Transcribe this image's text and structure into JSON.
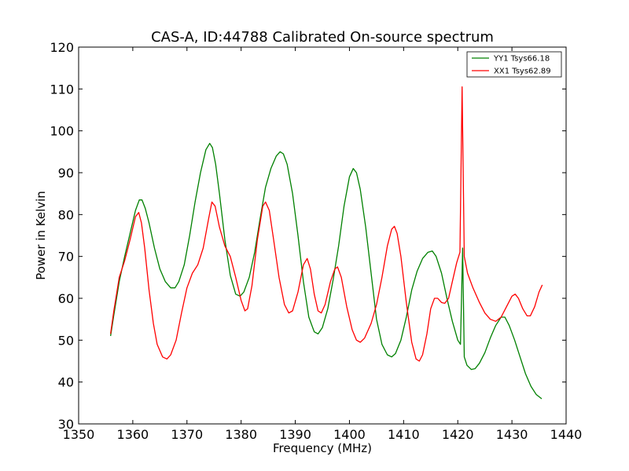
{
  "chart_data": {
    "type": "line",
    "title": "CAS-A, ID:44788 Calibrated On-source spectrum",
    "xlabel": "Frequency (MHz)",
    "ylabel": "Power in Kelvin",
    "xlim": [
      1350,
      1440
    ],
    "ylim": [
      30,
      120
    ],
    "xticks": [
      1350,
      1360,
      1370,
      1380,
      1390,
      1400,
      1410,
      1420,
      1430,
      1440
    ],
    "yticks": [
      30,
      40,
      50,
      60,
      70,
      80,
      90,
      100,
      110,
      120
    ],
    "grid": false,
    "legend_position": "top-right",
    "series": [
      {
        "name": "YY1 Tsys66.18",
        "color": "#008000",
        "points": [
          [
            1355.9,
            51.0
          ],
          [
            1356.5,
            56.0
          ],
          [
            1357.5,
            64.0
          ],
          [
            1358.5,
            70.0
          ],
          [
            1359.5,
            75.5
          ],
          [
            1360.5,
            81.0
          ],
          [
            1361.2,
            83.5
          ],
          [
            1361.7,
            83.5
          ],
          [
            1362.3,
            81.5
          ],
          [
            1363.0,
            78.0
          ],
          [
            1364.0,
            72.0
          ],
          [
            1365.0,
            67.0
          ],
          [
            1366.0,
            64.0
          ],
          [
            1367.0,
            62.5
          ],
          [
            1367.8,
            62.5
          ],
          [
            1368.5,
            64.0
          ],
          [
            1369.5,
            68.0
          ],
          [
            1370.5,
            75.0
          ],
          [
            1371.5,
            83.0
          ],
          [
            1372.5,
            90.0
          ],
          [
            1373.5,
            95.5
          ],
          [
            1374.2,
            97.0
          ],
          [
            1374.7,
            96.0
          ],
          [
            1375.3,
            92.0
          ],
          [
            1376.0,
            85.0
          ],
          [
            1377.0,
            74.0
          ],
          [
            1378.0,
            65.5
          ],
          [
            1379.0,
            61.0
          ],
          [
            1379.8,
            60.5
          ],
          [
            1380.5,
            61.5
          ],
          [
            1381.5,
            65.0
          ],
          [
            1382.5,
            71.0
          ],
          [
            1383.5,
            79.0
          ],
          [
            1384.5,
            86.5
          ],
          [
            1385.5,
            91.0
          ],
          [
            1386.5,
            94.0
          ],
          [
            1387.2,
            95.0
          ],
          [
            1387.8,
            94.5
          ],
          [
            1388.5,
            92.0
          ],
          [
            1389.5,
            85.0
          ],
          [
            1390.5,
            75.0
          ],
          [
            1391.5,
            64.0
          ],
          [
            1392.5,
            55.5
          ],
          [
            1393.5,
            52.0
          ],
          [
            1394.2,
            51.5
          ],
          [
            1395.0,
            53.0
          ],
          [
            1396.0,
            57.5
          ],
          [
            1397.0,
            64.5
          ],
          [
            1398.0,
            72.5
          ],
          [
            1399.0,
            82.0
          ],
          [
            1400.0,
            89.0
          ],
          [
            1400.7,
            91.0
          ],
          [
            1401.3,
            90.0
          ],
          [
            1402.0,
            86.0
          ],
          [
            1403.0,
            77.0
          ],
          [
            1404.0,
            66.0
          ],
          [
            1405.0,
            55.0
          ],
          [
            1406.0,
            49.0
          ],
          [
            1407.0,
            46.5
          ],
          [
            1407.8,
            46.0
          ],
          [
            1408.5,
            46.8
          ],
          [
            1409.5,
            50.0
          ],
          [
            1410.5,
            55.5
          ],
          [
            1411.5,
            62.0
          ],
          [
            1412.5,
            66.5
          ],
          [
            1413.5,
            69.5
          ],
          [
            1414.5,
            71.0
          ],
          [
            1415.3,
            71.3
          ],
          [
            1416.0,
            70.0
          ],
          [
            1417.0,
            66.0
          ],
          [
            1418.0,
            60.0
          ],
          [
            1419.0,
            54.5
          ],
          [
            1420.0,
            50.0
          ],
          [
            1420.5,
            49.0
          ],
          [
            1420.9,
            72.0
          ],
          [
            1421.2,
            46.0
          ],
          [
            1421.7,
            44.0
          ],
          [
            1422.5,
            43.0
          ],
          [
            1423.2,
            43.2
          ],
          [
            1424.0,
            44.5
          ],
          [
            1425.0,
            47.0
          ],
          [
            1426.0,
            50.5
          ],
          [
            1427.0,
            53.5
          ],
          [
            1428.0,
            55.5
          ],
          [
            1428.7,
            55.5
          ],
          [
            1429.5,
            53.5
          ],
          [
            1430.5,
            50.0
          ],
          [
            1431.5,
            46.0
          ],
          [
            1432.5,
            42.0
          ],
          [
            1433.5,
            39.0
          ],
          [
            1434.5,
            37.0
          ],
          [
            1435.5,
            36.0
          ]
        ]
      },
      {
        "name": "XX1 Tsys62.89",
        "color": "#ff0000",
        "points": [
          [
            1355.9,
            51.5
          ],
          [
            1356.5,
            57.0
          ],
          [
            1357.5,
            65.0
          ],
          [
            1358.5,
            69.0
          ],
          [
            1359.5,
            74.0
          ],
          [
            1360.5,
            79.5
          ],
          [
            1361.1,
            80.5
          ],
          [
            1361.6,
            78.0
          ],
          [
            1362.2,
            72.0
          ],
          [
            1363.0,
            62.0
          ],
          [
            1363.8,
            54.0
          ],
          [
            1364.5,
            49.0
          ],
          [
            1365.5,
            46.0
          ],
          [
            1366.3,
            45.5
          ],
          [
            1367.0,
            46.5
          ],
          [
            1368.0,
            50.0
          ],
          [
            1369.0,
            56.5
          ],
          [
            1370.0,
            62.5
          ],
          [
            1371.0,
            66.0
          ],
          [
            1372.0,
            68.0
          ],
          [
            1373.0,
            72.0
          ],
          [
            1374.0,
            79.0
          ],
          [
            1374.6,
            83.0
          ],
          [
            1375.2,
            82.0
          ],
          [
            1376.0,
            77.0
          ],
          [
            1377.0,
            72.5
          ],
          [
            1378.0,
            70.0
          ],
          [
            1379.0,
            65.0
          ],
          [
            1380.0,
            59.5
          ],
          [
            1380.7,
            57.0
          ],
          [
            1381.2,
            57.5
          ],
          [
            1382.0,
            63.0
          ],
          [
            1383.0,
            74.0
          ],
          [
            1384.0,
            82.0
          ],
          [
            1384.5,
            83.0
          ],
          [
            1385.2,
            81.0
          ],
          [
            1386.0,
            74.0
          ],
          [
            1387.0,
            65.0
          ],
          [
            1388.0,
            58.5
          ],
          [
            1388.8,
            56.5
          ],
          [
            1389.5,
            57.0
          ],
          [
            1390.5,
            61.5
          ],
          [
            1391.5,
            68.0
          ],
          [
            1392.2,
            69.5
          ],
          [
            1392.8,
            67.0
          ],
          [
            1393.5,
            61.0
          ],
          [
            1394.2,
            57.0
          ],
          [
            1394.8,
            56.5
          ],
          [
            1395.5,
            58.5
          ],
          [
            1396.5,
            64.0
          ],
          [
            1397.3,
            67.0
          ],
          [
            1397.8,
            67.5
          ],
          [
            1398.5,
            65.0
          ],
          [
            1399.5,
            58.0
          ],
          [
            1400.5,
            52.5
          ],
          [
            1401.3,
            50.0
          ],
          [
            1402.0,
            49.5
          ],
          [
            1402.8,
            50.5
          ],
          [
            1404.0,
            54.0
          ],
          [
            1405.0,
            58.5
          ],
          [
            1406.0,
            65.0
          ],
          [
            1407.0,
            72.5
          ],
          [
            1407.8,
            76.5
          ],
          [
            1408.3,
            77.2
          ],
          [
            1408.8,
            75.5
          ],
          [
            1409.5,
            70.0
          ],
          [
            1410.5,
            59.0
          ],
          [
            1411.5,
            49.5
          ],
          [
            1412.3,
            45.5
          ],
          [
            1412.9,
            45.0
          ],
          [
            1413.5,
            46.5
          ],
          [
            1414.3,
            51.5
          ],
          [
            1415.0,
            57.5
          ],
          [
            1415.7,
            60.0
          ],
          [
            1416.3,
            60.0
          ],
          [
            1417.0,
            59.0
          ],
          [
            1417.6,
            58.8
          ],
          [
            1418.3,
            60.0
          ],
          [
            1419.0,
            64.0
          ],
          [
            1419.8,
            68.5
          ],
          [
            1420.4,
            71.0
          ],
          [
            1420.8,
            110.5
          ],
          [
            1421.2,
            70.0
          ],
          [
            1421.8,
            66.0
          ],
          [
            1422.8,
            62.5
          ],
          [
            1424.0,
            59.0
          ],
          [
            1425.0,
            56.5
          ],
          [
            1426.0,
            55.0
          ],
          [
            1427.0,
            54.5
          ],
          [
            1428.0,
            55.5
          ],
          [
            1429.0,
            58.0
          ],
          [
            1430.0,
            60.5
          ],
          [
            1430.6,
            61.0
          ],
          [
            1431.2,
            60.0
          ],
          [
            1432.0,
            57.5
          ],
          [
            1432.8,
            55.8
          ],
          [
            1433.4,
            55.8
          ],
          [
            1434.2,
            58.0
          ],
          [
            1435.0,
            61.5
          ],
          [
            1435.6,
            63.2
          ]
        ]
      }
    ]
  }
}
